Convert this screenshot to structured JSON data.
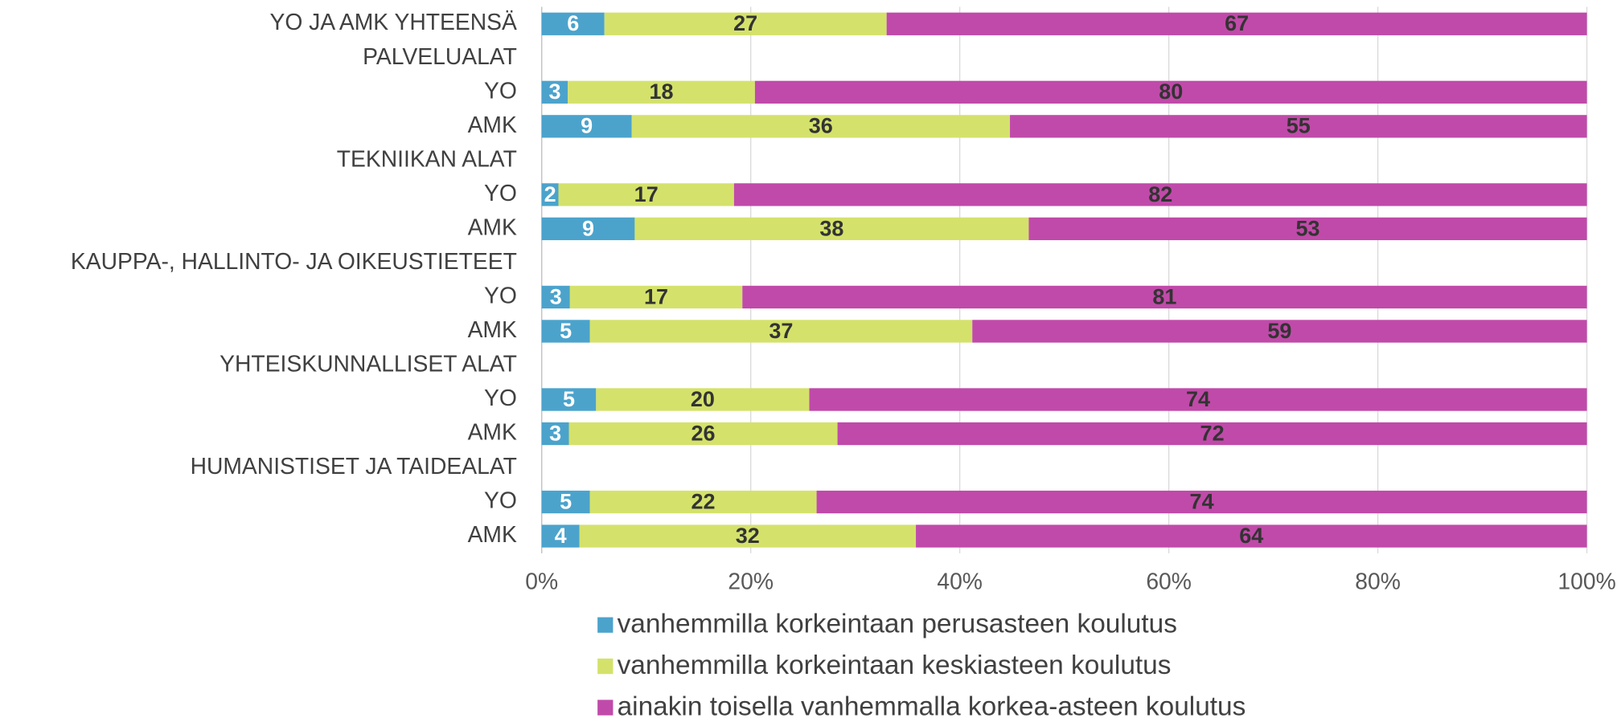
{
  "chart_data": {
    "type": "stacked_barh",
    "categories": [
      "YO JA AMK YHTEENSÄ",
      "PALVELUALAT",
      "YO",
      "AMK",
      "TEKNIIKAN ALAT",
      "YO",
      "AMK",
      "KAUPPA-, HALLINTO- JA OIKEUSTIETEET",
      "YO",
      "AMK",
      "YHTEISKUNNALLISET ALAT",
      "YO",
      "AMK",
      "HUMANISTISET JA TAIDEALAT",
      "YO",
      "AMK"
    ],
    "series": [
      {
        "name": "vanhemmilla korkeintaan perusasteen koulutus",
        "color": "#4ba3cc",
        "label_color": "#ffffff",
        "values": [
          6,
          null,
          2.5,
          8.6,
          null,
          1.6,
          8.9,
          null,
          2.7,
          4.6,
          null,
          5.2,
          2.6,
          null,
          4.6,
          3.6
        ],
        "value_labels": [
          "6",
          null,
          "3",
          "9",
          null,
          "2",
          "9",
          null,
          "3",
          "5",
          null,
          "5",
          "3",
          null,
          "5",
          "4"
        ]
      },
      {
        "name": "vanhemmilla korkeintaan keskiasteen koulutus",
        "color": "#d4e26b",
        "label_color": "#333333",
        "values": [
          27,
          null,
          17.9,
          36.2,
          null,
          16.8,
          37.7,
          null,
          16.5,
          36.6,
          null,
          20.4,
          25.7,
          null,
          21.7,
          32.2
        ],
        "value_labels": [
          "27",
          null,
          "18",
          "36",
          null,
          "17",
          "38",
          null,
          "17",
          "37",
          null,
          "20",
          "26",
          null,
          "22",
          "32"
        ]
      },
      {
        "name": "ainakin toisella vanhemmalla korkea-asteen koulutus",
        "color": "#c04aa9",
        "label_color": "#333333",
        "values": [
          67,
          null,
          79.6,
          55.2,
          null,
          81.6,
          53.4,
          null,
          80.8,
          58.8,
          null,
          74.4,
          71.7,
          null,
          73.7,
          64.2
        ],
        "value_labels": [
          "67",
          null,
          "80",
          "55",
          null,
          "82",
          "53",
          null,
          "81",
          "59",
          null,
          "74",
          "72",
          null,
          "74",
          "64"
        ]
      }
    ],
    "xlim": [
      0,
      100
    ],
    "xticks": [
      {
        "value": 0,
        "label": "0%"
      },
      {
        "value": 20,
        "label": "20%"
      },
      {
        "value": 40,
        "label": "40%"
      },
      {
        "value": 60,
        "label": "60%"
      },
      {
        "value": 80,
        "label": "80%"
      },
      {
        "value": 100,
        "label": "100%"
      }
    ],
    "grid": true,
    "legend": "bottom"
  }
}
